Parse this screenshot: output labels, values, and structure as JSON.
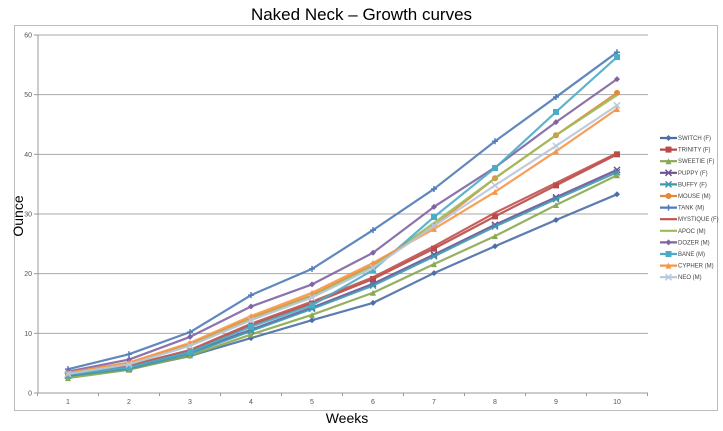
{
  "chart_data": {
    "type": "line",
    "title": "Naked Neck – Growth curves",
    "xlabel": "Weeks",
    "ylabel": "Ounce",
    "x": [
      1,
      2,
      3,
      4,
      5,
      6,
      7,
      8,
      9,
      10
    ],
    "ylim": [
      0,
      60
    ],
    "yticks": [
      0,
      10,
      20,
      30,
      40,
      50,
      60
    ],
    "grid": true,
    "legend_position": "right",
    "series": [
      {
        "name": "SWITCH (F)",
        "color": "#4a6fa5",
        "marker": "diamond",
        "values": [
          2.8,
          4.0,
          6.2,
          9.2,
          12.2,
          15.1,
          20.1,
          24.6,
          29.0,
          33.3
        ]
      },
      {
        "name": "TRINITY (F)",
        "color": "#b84a47",
        "marker": "square",
        "values": [
          3.2,
          4.4,
          7.0,
          11.3,
          15.0,
          19.1,
          24.2,
          29.6,
          34.8,
          40.0
        ]
      },
      {
        "name": "SWEETIE (F)",
        "color": "#8aa84f",
        "marker": "triangle",
        "values": [
          2.5,
          3.9,
          6.3,
          9.8,
          13.1,
          16.8,
          21.6,
          26.3,
          31.5,
          36.5
        ]
      },
      {
        "name": "PUPPY (F)",
        "color": "#6f5296",
        "marker": "x",
        "values": [
          3.0,
          4.2,
          6.8,
          10.6,
          14.3,
          18.3,
          23.2,
          28.2,
          32.8,
          37.4
        ]
      },
      {
        "name": "BUFFY (F)",
        "color": "#3f98b0",
        "marker": "star",
        "values": [
          2.9,
          4.1,
          6.6,
          10.4,
          14.1,
          18.0,
          22.9,
          27.9,
          32.5,
          37.0
        ]
      },
      {
        "name": "MOUSE (M)",
        "color": "#e48a3b",
        "marker": "circle",
        "values": [
          3.4,
          5.0,
          8.2,
          12.6,
          16.4,
          21.5,
          28.0,
          36.0,
          43.2,
          50.3
        ]
      },
      {
        "name": "TANK (M)",
        "color": "#4f7bb8",
        "marker": "plus",
        "values": [
          4.0,
          6.5,
          10.2,
          16.4,
          20.8,
          27.3,
          34.2,
          42.2,
          49.6,
          57.1
        ]
      },
      {
        "name": "MYSTIQUE (F)",
        "color": "#c0504d",
        "marker": "none",
        "values": [
          3.3,
          4.6,
          7.2,
          11.6,
          15.3,
          19.4,
          24.6,
          30.2,
          35.2,
          40.2
        ]
      },
      {
        "name": "APOC (M)",
        "color": "#9bbb59",
        "marker": "none",
        "values": [
          3.3,
          4.9,
          8.0,
          12.3,
          16.2,
          21.2,
          28.5,
          36.0,
          43.2,
          49.9
        ]
      },
      {
        "name": "DOZER (M)",
        "color": "#8064a2",
        "marker": "diamond",
        "values": [
          3.6,
          5.6,
          9.4,
          14.5,
          18.2,
          23.5,
          31.2,
          37.8,
          45.4,
          52.6
        ]
      },
      {
        "name": "BANE (M)",
        "color": "#4bacc6",
        "marker": "square",
        "values": [
          3.1,
          4.3,
          6.9,
          11.1,
          14.7,
          20.6,
          29.5,
          37.7,
          47.1,
          56.3
        ]
      },
      {
        "name": "CYPHER (M)",
        "color": "#f79646",
        "marker": "triangle",
        "values": [
          3.4,
          5.1,
          8.4,
          12.9,
          16.8,
          21.8,
          27.5,
          33.7,
          40.5,
          47.6
        ]
      },
      {
        "name": "NEO (M)",
        "color": "#b8c7dc",
        "marker": "x",
        "values": [
          3.2,
          4.8,
          7.9,
          12.2,
          16.0,
          21.0,
          28.0,
          34.8,
          41.4,
          48.2
        ]
      }
    ]
  }
}
